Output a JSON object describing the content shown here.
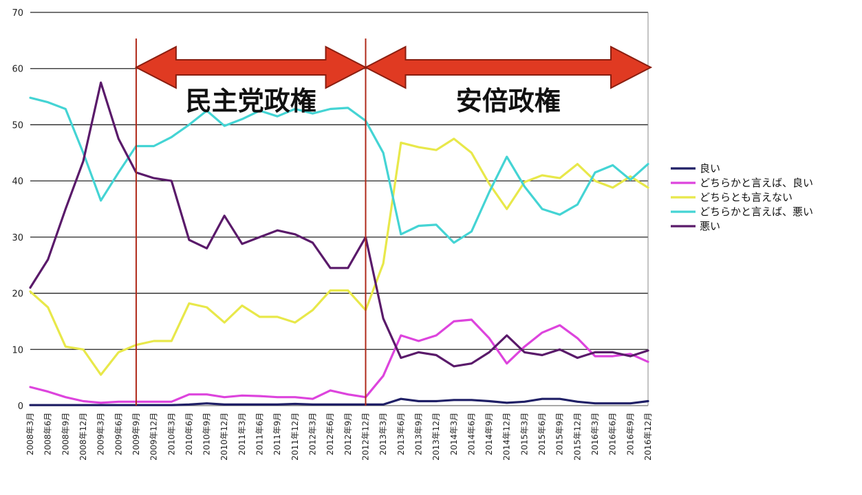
{
  "chart_data": {
    "type": "line",
    "title": "",
    "xlabel": "",
    "ylabel": "",
    "ylim": [
      0,
      70
    ],
    "yticks": [
      0,
      10,
      20,
      30,
      40,
      50,
      60,
      70
    ],
    "grid": true,
    "legend_position": "right",
    "categories": [
      "2008年3月",
      "2008年6月",
      "2008年9月",
      "2008年12月",
      "2009年3月",
      "2009年6月",
      "2009年9月",
      "2009年12月",
      "2010年3月",
      "2010年6月",
      "2010年9月",
      "2010年12月",
      "2011年3月",
      "2011年6月",
      "2011年9月",
      "2011年12月",
      "2012年3月",
      "2012年6月",
      "2012年9月",
      "2012年12月",
      "2013年3月",
      "2013年6月",
      "2013年9月",
      "2013年12月",
      "2014年3月",
      "2014年6月",
      "2014年9月",
      "2014年12月",
      "2015年3月",
      "2015年6月",
      "2015年9月",
      "2015年12月",
      "2016年3月",
      "2016年6月",
      "2016年9月",
      "2016年12月"
    ],
    "x_tick_labels": [
      "2008年3月",
      "2008年6月",
      "2008年9月",
      "2008年12月",
      "2009年3月",
      "2009年6月",
      "2009年9月",
      "2009年12月",
      "2010年3月",
      "2010年6月",
      "2010年9月",
      "2010年12月",
      "2011年3月",
      "2011年6月",
      "2011年9月",
      "2011年12月",
      "2012年3月",
      "2012年6月",
      "2012年9月",
      "2012年12月",
      "2013年3月",
      "2013年6月",
      "2013年9月",
      "2013年12月",
      "2014年3月",
      "2014年6月",
      "2014年9月",
      "2014年12月",
      "2015年3月",
      "2015年6月",
      "2015年9月",
      "2015年12月",
      "2016年3月",
      "2016年6月",
      "2016年9月",
      "2016年12月"
    ],
    "series": [
      {
        "name": "良い",
        "color": "#1f1f66",
        "values": [
          0.1,
          0.1,
          0.1,
          0.1,
          0.1,
          0.1,
          0.1,
          0.1,
          0.1,
          0.2,
          0.4,
          0.2,
          0.2,
          0.2,
          0.2,
          0.3,
          0.2,
          0.2,
          0.2,
          0.2,
          0.2,
          1.2,
          0.8,
          0.8,
          1.0,
          1.0,
          0.8,
          0.5,
          0.7,
          1.2,
          1.2,
          0.7,
          0.4,
          0.4,
          0.4,
          0.8
        ]
      },
      {
        "name": "どちらかと言えば、良い",
        "color": "#dd44dd",
        "values": [
          3.3,
          2.5,
          1.5,
          0.8,
          0.5,
          0.7,
          0.7,
          0.7,
          0.7,
          2.0,
          2.0,
          1.5,
          1.8,
          1.7,
          1.5,
          1.5,
          1.2,
          2.7,
          2.0,
          1.5,
          5.3,
          12.5,
          11.5,
          12.5,
          15.0,
          15.3,
          12.0,
          7.5,
          10.5,
          13.0,
          14.3,
          12.0,
          8.8,
          8.8,
          9.2,
          7.8
        ]
      },
      {
        "name": "どちらとも言えない",
        "color": "#e8e84a",
        "values": [
          20.3,
          17.5,
          10.5,
          10.0,
          5.5,
          9.5,
          10.8,
          11.5,
          11.5,
          18.2,
          17.5,
          14.8,
          17.8,
          15.8,
          15.8,
          14.8,
          17.0,
          20.5,
          20.5,
          17.0,
          25.3,
          46.8,
          46.0,
          45.5,
          47.5,
          45.0,
          39.5,
          35.0,
          39.8,
          41.0,
          40.5,
          43.0,
          40.0,
          38.8,
          40.8,
          38.8
        ]
      },
      {
        "name": "どちらかと言えば、悪い",
        "color": "#44d4d4",
        "values": [
          54.8,
          54.0,
          52.8,
          45.0,
          36.5,
          41.5,
          46.2,
          46.2,
          47.8,
          50.0,
          52.5,
          49.8,
          51.0,
          52.5,
          51.5,
          52.8,
          52.0,
          52.8,
          53.0,
          50.7,
          45.0,
          30.5,
          32.0,
          32.2,
          29.0,
          31.0,
          38.0,
          44.3,
          39.0,
          35.0,
          34.0,
          35.8,
          41.5,
          42.8,
          40.2,
          43.0
        ]
      },
      {
        "name": "悪い",
        "color": "#5a1a6a",
        "values": [
          21.0,
          26.0,
          35.0,
          43.5,
          57.5,
          47.5,
          41.5,
          40.5,
          40.0,
          29.5,
          28.0,
          33.8,
          28.8,
          30.0,
          31.2,
          30.5,
          29.0,
          24.5,
          24.5,
          30.0,
          15.5,
          8.5,
          9.5,
          9.0,
          7.0,
          7.5,
          9.5,
          12.5,
          9.5,
          9.0,
          10.0,
          8.5,
          9.5,
          9.5,
          8.8,
          9.8
        ]
      }
    ],
    "annotations": [
      {
        "text": "民主党政権",
        "from": "2009年9月",
        "to": "2012年12月"
      },
      {
        "text": "安倍政権",
        "from": "2012年12月",
        "to": "2016年12月"
      }
    ]
  }
}
